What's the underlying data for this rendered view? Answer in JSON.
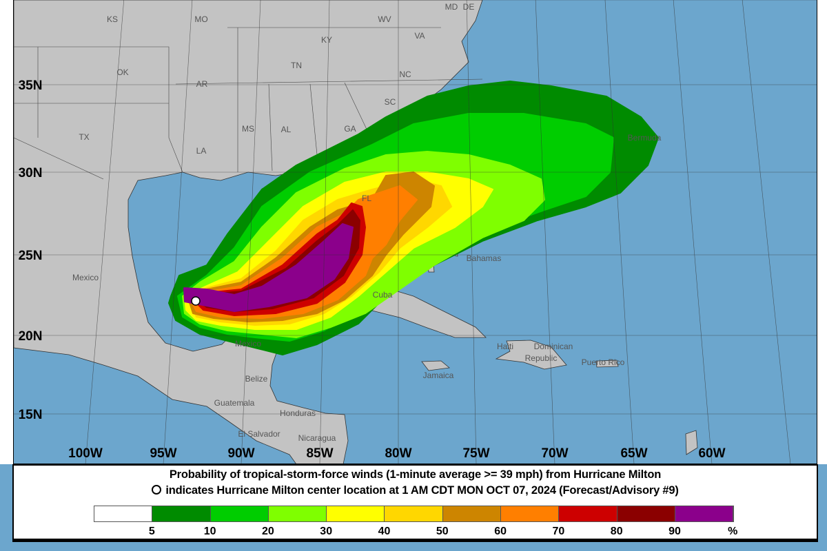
{
  "map": {
    "ocean_color": "#6CA6CD",
    "land_color": "#C3C3C3",
    "latitude_labels": [
      "35N",
      "30N",
      "25N",
      "20N",
      "15N"
    ],
    "longitude_labels": [
      "100W",
      "95W",
      "90W",
      "85W",
      "80W",
      "75W",
      "70W",
      "65W",
      "60W"
    ],
    "place_labels": {
      "ks": "KS",
      "mo": "MO",
      "ky": "KY",
      "wv": "WV",
      "va": "VA",
      "md": "MD",
      "de": "DE",
      "ok": "OK",
      "ar": "AR",
      "tn": "TN",
      "nc": "NC",
      "sc": "SC",
      "ms": "MS",
      "al": "AL",
      "ga": "GA",
      "tx": "TX",
      "la": "LA",
      "fl": "FL",
      "mexico1": "Mexico",
      "mexico2": "Mexico",
      "bahamas": "Bahamas",
      "cuba": "Cuba",
      "bermuda": "Bermuda",
      "haiti": "Haiti",
      "dominican": "Dominican",
      "republic": "Republic",
      "puerto_rico": "Puerto Rico",
      "jamaica": "Jamaica",
      "belize": "Belize",
      "guatemala": "Guatemala",
      "honduras": "Honduras",
      "el_salvador": "El Salvador",
      "nicaragua": "Nicaragua"
    },
    "storm_center_icon": "white-circle",
    "storm_name": "Hurricane Milton"
  },
  "legend": {
    "title_line1": "Probability of tropical-storm-force winds (1-minute average >= 39 mph) from Hurricane Milton",
    "title_line2": "indicates Hurricane Milton center location at 1 AM CDT MON OCT 07, 2024 (Forecast/Advisory #9)",
    "bins": [
      {
        "color": "#FFFFFF"
      },
      {
        "color": "#008B00"
      },
      {
        "color": "#00CD00"
      },
      {
        "color": "#7FFF00"
      },
      {
        "color": "#FFFF00"
      },
      {
        "color": "#FFD700"
      },
      {
        "color": "#CD8500"
      },
      {
        "color": "#FF7F00"
      },
      {
        "color": "#CD0000"
      },
      {
        "color": "#8B0000"
      },
      {
        "color": "#8B008B"
      }
    ],
    "tick_labels": [
      "5",
      "10",
      "20",
      "30",
      "40",
      "50",
      "60",
      "70",
      "80",
      "90",
      "%"
    ]
  }
}
